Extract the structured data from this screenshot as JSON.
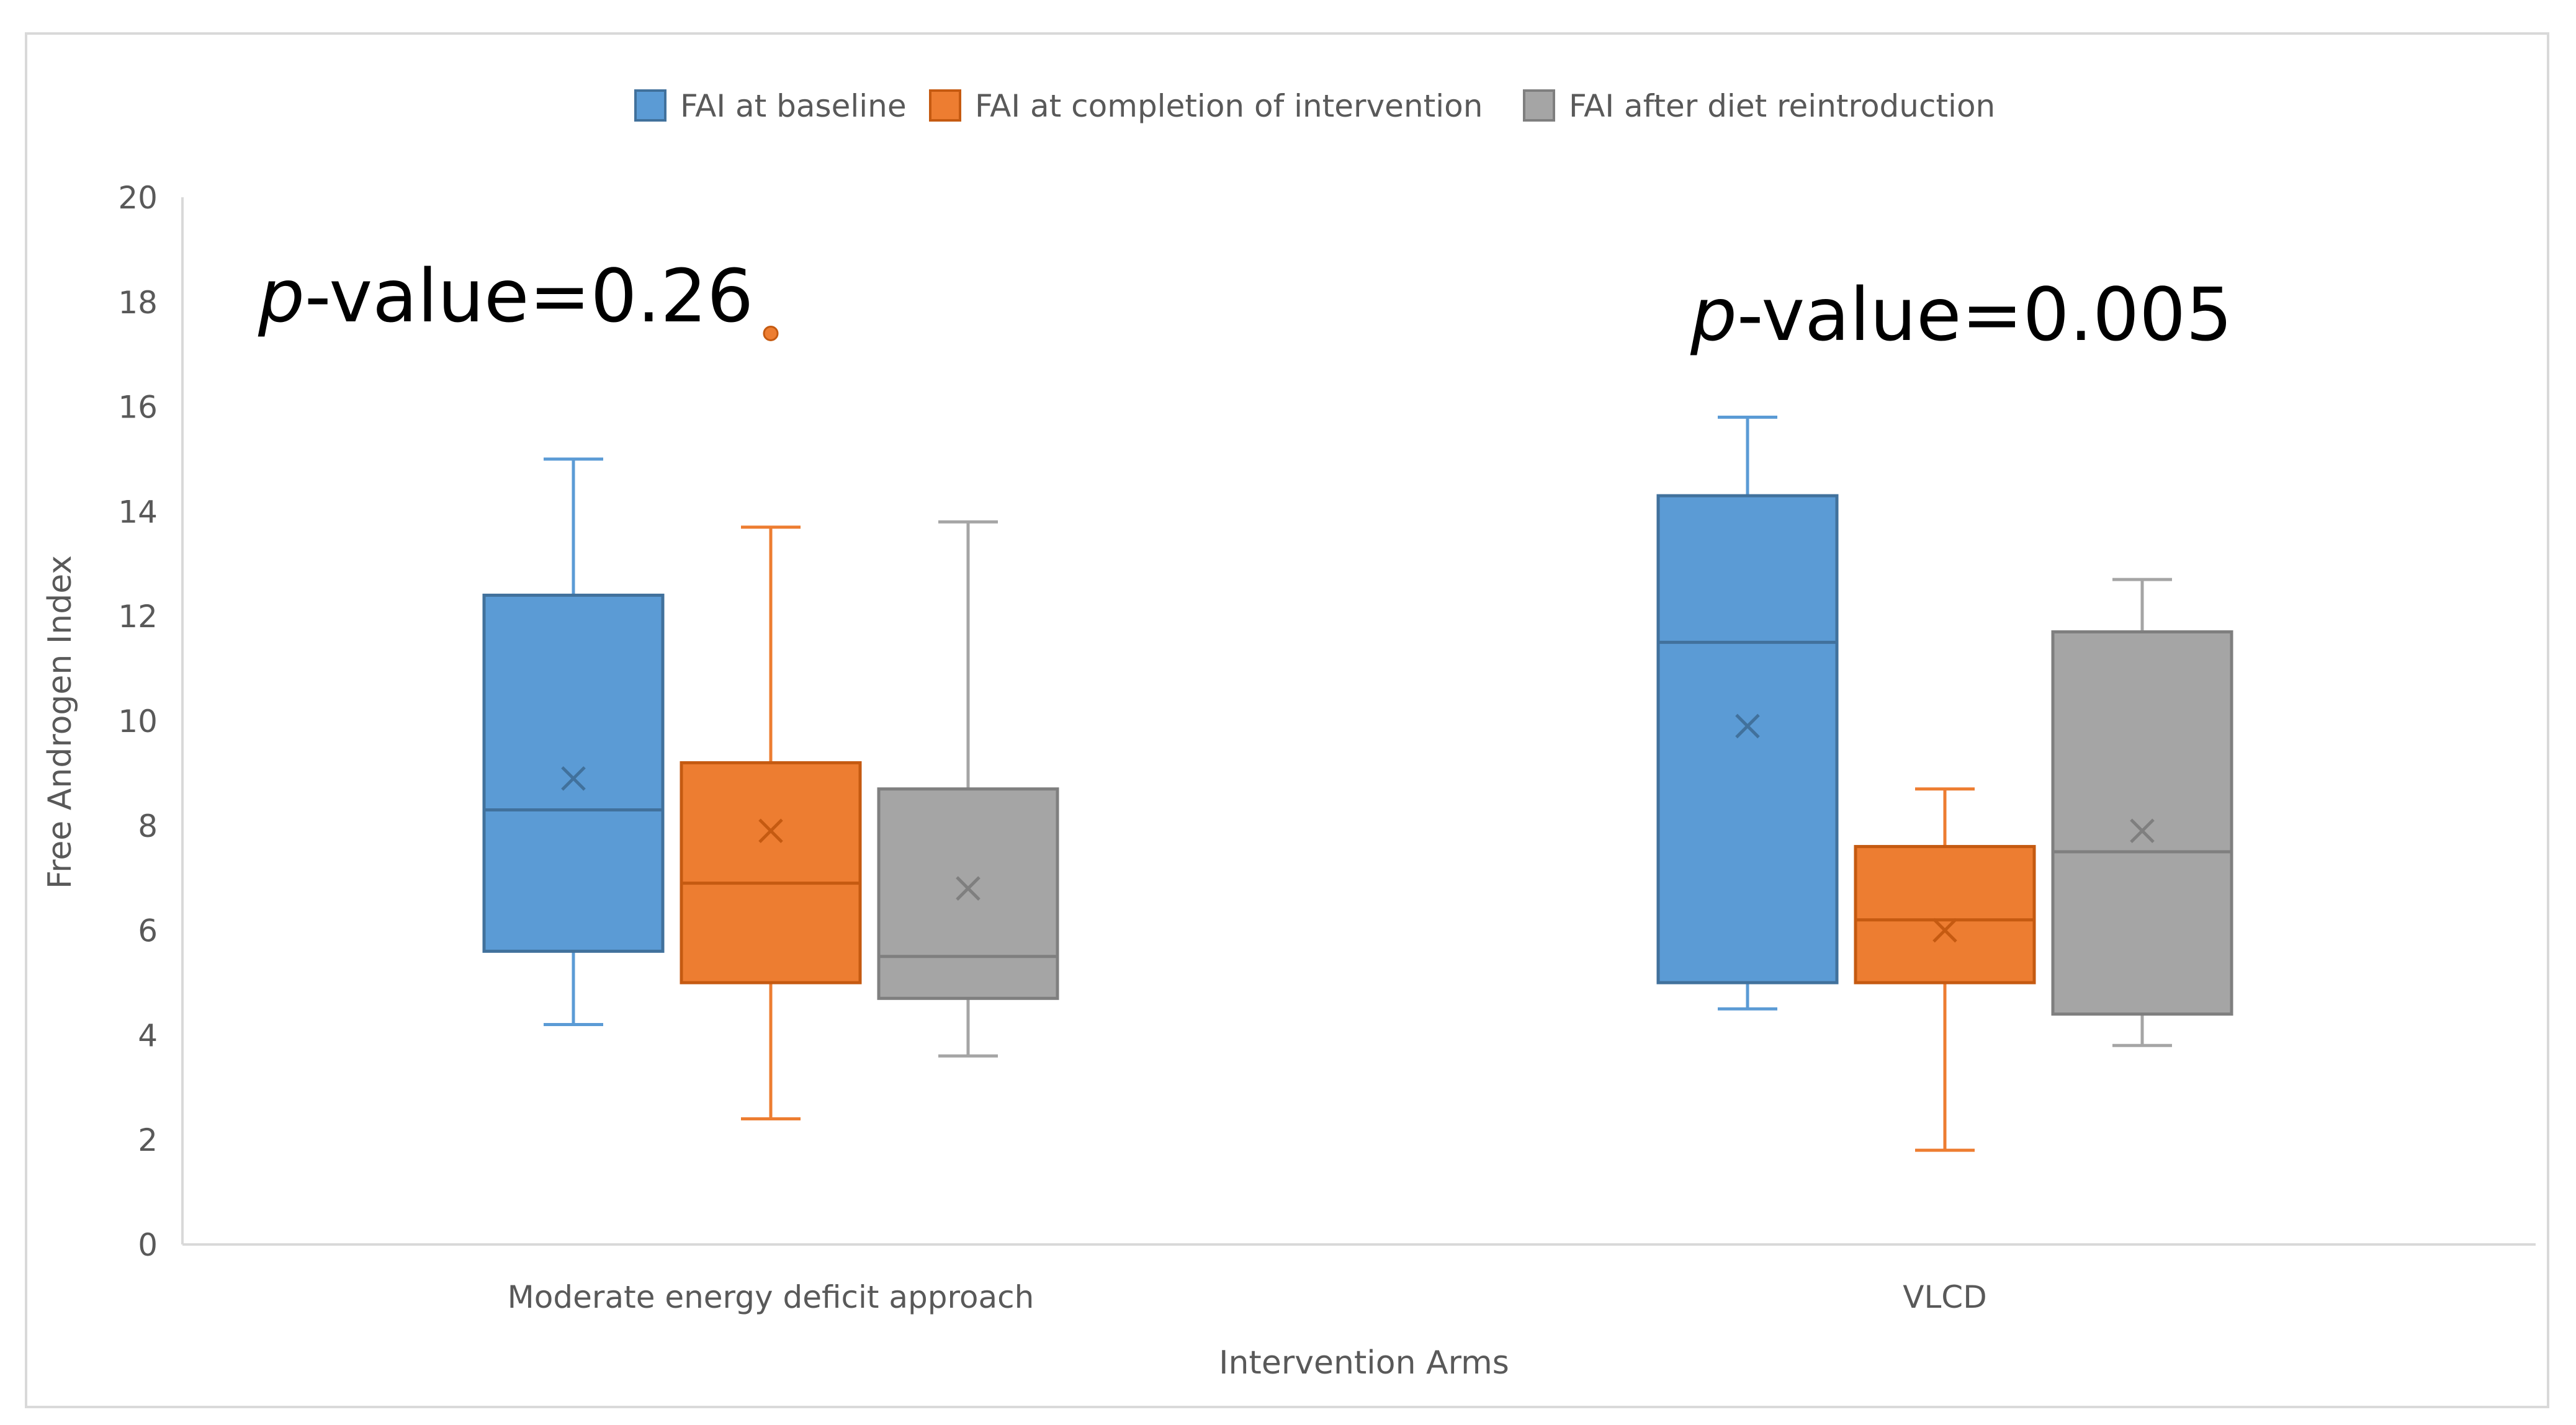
{
  "chart_data": {
    "type": "boxplot",
    "title": "",
    "xlabel": "Intervention Arms",
    "ylabel": "Free Androgen Index",
    "ylim": [
      0,
      20
    ],
    "yticks": [
      0,
      2,
      4,
      6,
      8,
      10,
      12,
      14,
      16,
      18,
      20
    ],
    "grid": false,
    "legend_position": "top-center",
    "categories": [
      "Moderate energy deficit approach",
      "VLCD"
    ],
    "series": [
      {
        "name": "FAI at baseline",
        "color": "#5B9BD5",
        "edge": "#41719C",
        "boxes": [
          {
            "min": 4.2,
            "q1": 5.6,
            "median": 8.3,
            "q3": 12.4,
            "max": 15.0,
            "mean": 8.9,
            "outliers": []
          },
          {
            "min": 4.5,
            "q1": 5.0,
            "median": 11.5,
            "q3": 14.3,
            "max": 15.8,
            "mean": 9.9,
            "outliers": []
          }
        ]
      },
      {
        "name": "FAI at completion of intervention",
        "color": "#ED7D31",
        "edge": "#C55A11",
        "boxes": [
          {
            "min": 2.4,
            "q1": 5.0,
            "median": 6.9,
            "q3": 9.2,
            "max": 13.7,
            "mean": 7.9,
            "outliers": [
              17.4
            ]
          },
          {
            "min": 1.8,
            "q1": 5.0,
            "median": 6.2,
            "q3": 7.6,
            "max": 8.7,
            "mean": 6.0,
            "outliers": []
          }
        ]
      },
      {
        "name": "FAI after diet reintroduction",
        "color": "#A5A5A5",
        "edge": "#7F7F7F",
        "boxes": [
          {
            "min": 3.6,
            "q1": 4.7,
            "median": 5.5,
            "q3": 8.7,
            "max": 13.8,
            "mean": 6.8,
            "outliers": []
          },
          {
            "min": 3.8,
            "q1": 4.4,
            "median": 7.5,
            "q3": 11.7,
            "max": 12.7,
            "mean": 7.9,
            "outliers": []
          }
        ]
      }
    ],
    "annotations": [
      {
        "italic": "p",
        "rest": "-value=0.26",
        "category": "Moderate energy deficit approach"
      },
      {
        "italic": "p",
        "rest": "-value=0.005",
        "category": "VLCD"
      }
    ]
  }
}
